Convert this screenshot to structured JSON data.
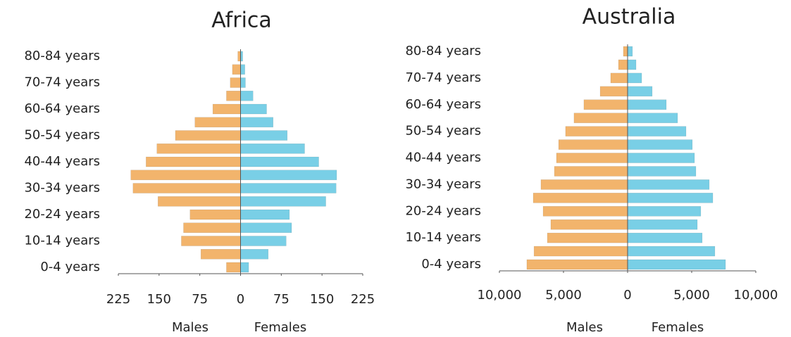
{
  "chart_data": [
    {
      "type": "pyramid",
      "title": "Africa",
      "categories": [
        "0-4 years",
        null,
        "10-14 years",
        null,
        "20-24 years",
        null,
        "30-34 years",
        null,
        "40-44 years",
        null,
        "50-54 years",
        null,
        "60-64 years",
        null,
        "70-74 years",
        null,
        "80-84 years"
      ],
      "series": [
        {
          "name": "Males",
          "color": "#f2b46c",
          "values": [
            -26,
            -73,
            -109,
            -105,
            -93,
            -152,
            -198,
            -202,
            -174,
            -154,
            -120,
            -84,
            -51,
            -26,
            -19,
            -15,
            -5
          ]
        },
        {
          "name": "Females",
          "color": "#79cfe6",
          "values": [
            15,
            51,
            84,
            94,
            90,
            157,
            176,
            177,
            144,
            118,
            86,
            60,
            48,
            23,
            9,
            8,
            4
          ]
        }
      ],
      "xlim": [
        -225,
        225
      ],
      "xticks": [
        {
          "value": -225,
          "label": "225"
        },
        {
          "value": -150,
          "label": "150"
        },
        {
          "value": -75,
          "label": "75"
        },
        0,
        75,
        150,
        225
      ]
    },
    {
      "type": "pyramid",
      "title": "Australia",
      "categories": [
        "0-4 years",
        null,
        "10-14 years",
        null,
        "20-24 years",
        null,
        "30-34 years",
        null,
        "40-44 years",
        null,
        "50-54 years",
        null,
        "60-64 years",
        null,
        "70-74 years",
        null,
        "80-84 years"
      ],
      "series": [
        {
          "name": "Males",
          "color": "#f2b46c",
          "values": [
            -7860,
            -7300,
            -6260,
            -5990,
            -6590,
            -7360,
            -6760,
            -5710,
            -5550,
            -5380,
            -4840,
            -4180,
            -3410,
            -2140,
            -1320,
            -710,
            -330
          ]
        },
        {
          "name": "Females",
          "color": "#79cfe6",
          "values": [
            7640,
            6810,
            5820,
            5440,
            5710,
            6650,
            6370,
            5330,
            5220,
            5050,
            4560,
            3900,
            3020,
            1920,
            1100,
            660,
            380
          ]
        }
      ],
      "xlim": [
        -10000,
        10000
      ],
      "xticks": [
        {
          "value": -10000,
          "label": "10,000"
        },
        {
          "value": -5000,
          "label": "5,000"
        },
        0,
        {
          "value": 5000,
          "label": "5,000"
        },
        {
          "value": 10000,
          "label": "10,000"
        }
      ]
    }
  ]
}
